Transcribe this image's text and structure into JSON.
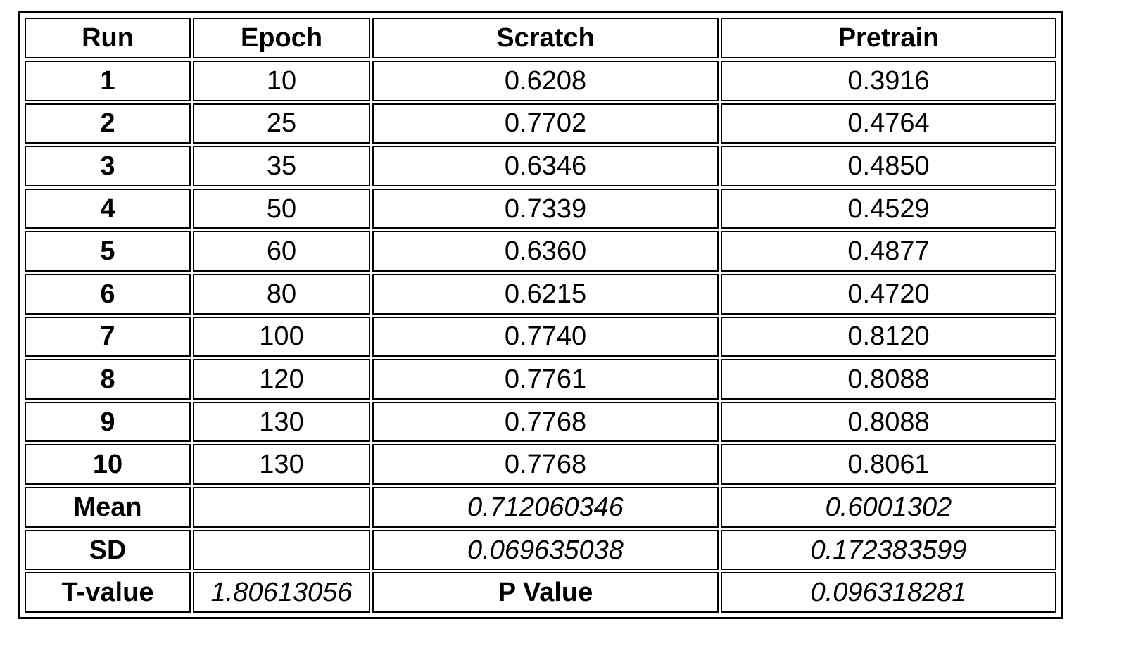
{
  "table": {
    "headers": [
      "Run",
      "Epoch",
      "Scratch",
      "Pretrain"
    ],
    "rows": [
      {
        "run": "1",
        "epoch": "10",
        "scratch": "0.6208",
        "pretrain": "0.3916"
      },
      {
        "run": "2",
        "epoch": "25",
        "scratch": "0.7702",
        "pretrain": "0.4764"
      },
      {
        "run": "3",
        "epoch": "35",
        "scratch": "0.6346",
        "pretrain": "0.4850"
      },
      {
        "run": "4",
        "epoch": "50",
        "scratch": "0.7339",
        "pretrain": "0.4529"
      },
      {
        "run": "5",
        "epoch": "60",
        "scratch": "0.6360",
        "pretrain": "0.4877"
      },
      {
        "run": "6",
        "epoch": "80",
        "scratch": "0.6215",
        "pretrain": "0.4720"
      },
      {
        "run": "7",
        "epoch": "100",
        "scratch": "0.7740",
        "pretrain": "0.8120"
      },
      {
        "run": "8",
        "epoch": "120",
        "scratch": "0.7761",
        "pretrain": "0.8088"
      },
      {
        "run": "9",
        "epoch": "130",
        "scratch": "0.7768",
        "pretrain": "0.8088"
      },
      {
        "run": "10",
        "epoch": "130",
        "scratch": "0.7768",
        "pretrain": "0.8061"
      }
    ],
    "mean": {
      "label": "Mean",
      "scratch": "0.712060346",
      "pretrain": "0.6001302"
    },
    "sd": {
      "label": "SD",
      "scratch": "0.069635038",
      "pretrain": "0.172383599"
    },
    "tvalue": {
      "label": "T-value",
      "value": "1.80613056",
      "p_label": "P Value",
      "p_value": "0.096318281"
    }
  }
}
